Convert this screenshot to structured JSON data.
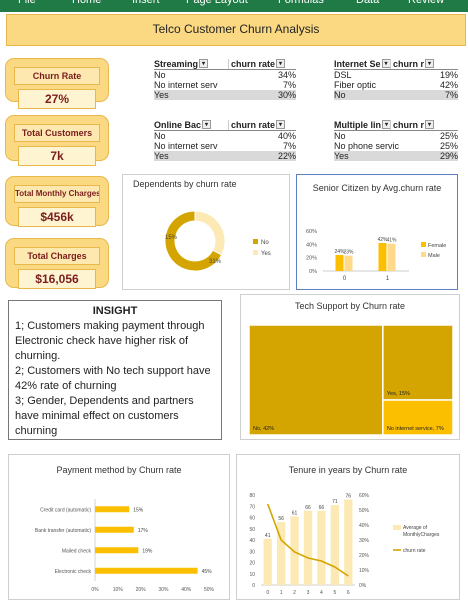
{
  "ribbon": {
    "tabs": [
      "File",
      "Home",
      "Insert",
      "Page Layout",
      "Formulas",
      "Data",
      "Review"
    ]
  },
  "title": "Telco Customer Churn Analysis",
  "kpis": [
    {
      "label": "Churn Rate",
      "value": "27%"
    },
    {
      "label": "Total Customers",
      "value": "7k"
    },
    {
      "label": "Total Monthly Charges",
      "value": "$456k"
    },
    {
      "label": "Total Charges",
      "value": "$16,056"
    }
  ],
  "pivots": [
    {
      "field": "Streaming",
      "measure": "churn rate",
      "rows": [
        {
          "k": "No",
          "v": "34%"
        },
        {
          "k": "No internet serv",
          "v": "7%"
        },
        {
          "k": "Yes",
          "v": "30%"
        }
      ]
    },
    {
      "field": "Internet Se",
      "measure": "churn r",
      "rows": [
        {
          "k": "DSL",
          "v": "19%"
        },
        {
          "k": "Fiber optic",
          "v": "42%"
        },
        {
          "k": "No",
          "v": "7%"
        }
      ]
    },
    {
      "field": "Online Bac",
      "measure": "churn rate",
      "rows": [
        {
          "k": "No",
          "v": "40%"
        },
        {
          "k": "No internet serv",
          "v": "7%"
        },
        {
          "k": "Yes",
          "v": "22%"
        }
      ]
    },
    {
      "field": "Multiple lin",
      "measure": "churn r",
      "rows": [
        {
          "k": "No",
          "v": "25%"
        },
        {
          "k": "No phone servic",
          "v": "25%"
        },
        {
          "k": "Yes",
          "v": "29%"
        }
      ]
    }
  ],
  "insight": {
    "heading": "INSIGHT",
    "lines": [
      "1;  Customers making payment through Electronic check have higher risk of churning.",
      "2; Customers with No tech support have 42% rate of churning",
      "3; Gender, Dependents and partners have minimal effect on customers churning"
    ]
  },
  "colors": {
    "gold": "#d4a500",
    "amber": "#fcbf00",
    "light": "#ffd98a",
    "pale": "#fde9b3",
    "header_fill": "#fbd983",
    "dark_text": "#7a1d1d"
  },
  "chart_data": [
    {
      "type": "pie",
      "title": "Dependents by churn rate",
      "categories": [
        "No",
        "Yes"
      ],
      "values": [
        31,
        15
      ],
      "labels": [
        "31%",
        "15%"
      ],
      "legend": "right",
      "donut": true
    },
    {
      "type": "bar",
      "title": "Senior Citizen by Avg.churn rate",
      "categories": [
        "0",
        "1"
      ],
      "series": [
        {
          "name": "Female",
          "values": [
            24,
            42
          ]
        },
        {
          "name": "Male",
          "values": [
            23,
            41
          ]
        }
      ],
      "ylim": [
        0,
        60
      ],
      "yticks": [
        "0%",
        "20%",
        "40%",
        "60%"
      ],
      "legend": "right"
    },
    {
      "type": "heatmap",
      "title": "Tech Support by  Churn rate",
      "categories": [
        "No",
        "Yes",
        "No internet service"
      ],
      "values": [
        42,
        15,
        7
      ],
      "labels": [
        "No, 42%",
        "Yes, 15%",
        "No internet service, 7%"
      ]
    },
    {
      "type": "bar",
      "orientation": "horizontal",
      "title": "Payment method by Churn rate",
      "categories": [
        "Credit card (automatic)",
        "Bank transfer (automatic)",
        "Mailed check",
        "Electronic check"
      ],
      "values": [
        15,
        17,
        19,
        45
      ],
      "labels": [
        "15%",
        "17%",
        "19%",
        "45%"
      ],
      "xlim": [
        0,
        50
      ],
      "xticks": [
        "0%",
        "10%",
        "20%",
        "30%",
        "40%",
        "50%"
      ]
    },
    {
      "type": "bar",
      "title": "Tenure in years by Churn rate",
      "x": [
        "0",
        "1",
        "2",
        "3",
        "4",
        "5",
        "6"
      ],
      "series": [
        {
          "name": "Average of MonthlyCharges",
          "type": "bar",
          "values": [
            41,
            56,
            61,
            66,
            66,
            71,
            76
          ]
        },
        {
          "name": "churn rate",
          "type": "line",
          "values": [
            54,
            30,
            22,
            18,
            16,
            12,
            6
          ]
        }
      ],
      "ylim": [
        0,
        80
      ],
      "yticks": [
        "0",
        "10",
        "20",
        "30",
        "40",
        "50",
        "60",
        "70",
        "80"
      ],
      "y2lim": [
        0,
        60
      ],
      "y2ticks": [
        "0%",
        "10%",
        "20%",
        "30%",
        "40%",
        "50%",
        "60%"
      ],
      "legend": "right"
    }
  ]
}
